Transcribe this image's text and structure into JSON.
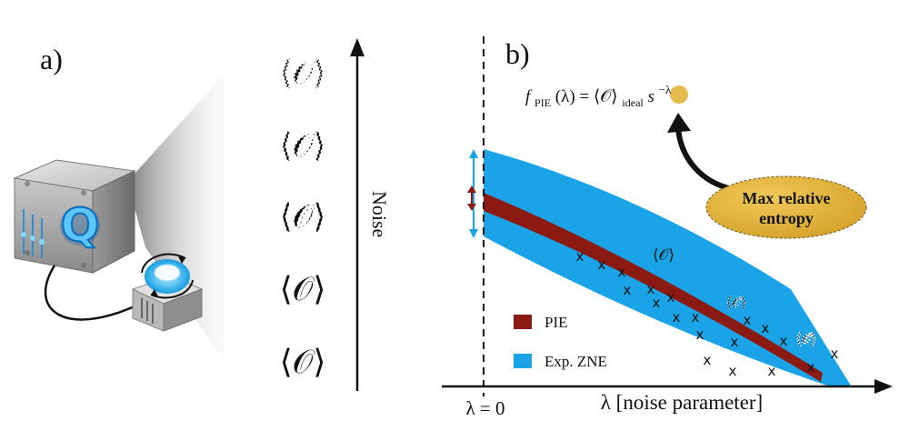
{
  "panel_a": {
    "label": "a)",
    "axis_label": "Noise",
    "observable_symbol": "⟨𝒪⟩",
    "rows": [
      {
        "symbol": "⟨𝒪⟩",
        "noise_level": "highest"
      },
      {
        "symbol": "⟨𝒪⟩",
        "noise_level": "high"
      },
      {
        "symbol": "⟨𝒪⟩",
        "noise_level": "medium"
      },
      {
        "symbol": "⟨𝒪⟩",
        "noise_level": "low"
      },
      {
        "symbol": "⟨𝒪⟩",
        "noise_level": "lowest"
      }
    ],
    "device_logo_letter": "Q"
  },
  "panel_b": {
    "label": "b)",
    "formula": {
      "f": "f",
      "sub_f": "PIE",
      "lhs_rest": "(λ) = ⟨𝒪⟩",
      "sub_ideal": "ideal",
      "base": "s",
      "exponent": "−λ"
    },
    "callout": {
      "line1": "Max relative",
      "line2": "entropy",
      "color": "#E2B33A"
    },
    "x_axis_label": "λ [noise parameter]",
    "zero_label": "λ = 0",
    "annotations": [
      "⟨𝒪⟩",
      "⟨𝒪⟩",
      "⟨𝒪⟩"
    ],
    "legend": [
      {
        "label": "PIE",
        "color": "#8B1A12"
      },
      {
        "label": "Exp. ZNE",
        "color": "#1AA3E6"
      }
    ],
    "marker": "x"
  }
}
